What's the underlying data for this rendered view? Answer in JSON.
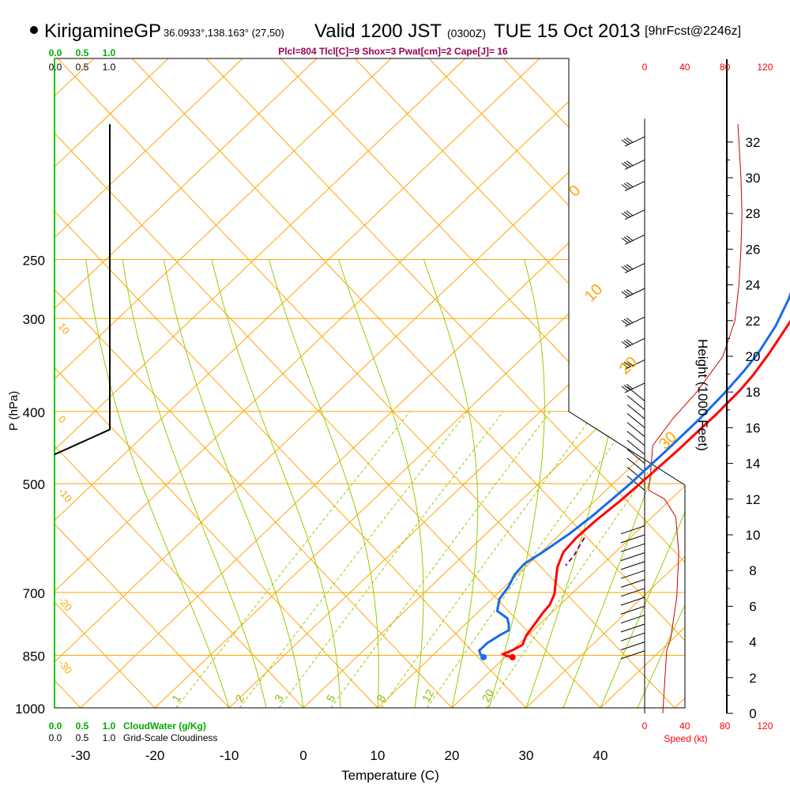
{
  "header": {
    "station": "KirigamineGP",
    "coords": "36.0933°,138.163° (27,50)",
    "valid": "Valid 1200 JST",
    "valid_z": "(0300Z)",
    "date": "TUE 15 Oct 2013",
    "forecast": "[9hrFcst@2246z]",
    "params": "Plcl=804 Tlcl[C]=9 Shox=3 Pwat[cm]=2 Cape[J]= 16"
  },
  "chart_data": {
    "type": "line",
    "xlabel": "Temperature (C)",
    "ylabel": "P (hPa)",
    "right_label": "Height (1000 Feet)",
    "speed_label": "Speed (kt)",
    "cloudwater_label": "CloudWater (g/Kg)",
    "cloudiness_label": "Grid-Scale Cloudiness",
    "x_ticks": [
      "-30",
      "-20",
      "-10",
      "0",
      "10",
      "20",
      "30",
      "40"
    ],
    "pressure_ticks": [
      "250",
      "300",
      "400",
      "500",
      "700",
      "850",
      "1000"
    ],
    "height_ticks": [
      "0",
      "2",
      "4",
      "6",
      "8",
      "10",
      "12",
      "14",
      "16",
      "18",
      "20",
      "22",
      "24",
      "26",
      "28",
      "30",
      "32"
    ],
    "speed_ticks": [
      "0",
      "40",
      "80",
      "120"
    ],
    "top_scale_green": [
      "0.0",
      "0.5",
      "1.0"
    ],
    "top_scale_black": [
      "0.0",
      "0.5",
      "1.0"
    ],
    "isotherm_labels": [
      "10",
      "0",
      "-10",
      "-20",
      "-30"
    ],
    "dry_adiabat_labels": [
      "0",
      "10",
      "20",
      "30"
    ],
    "mixing_ratio_labels": [
      "1",
      "2",
      "3",
      "5",
      "8",
      "12",
      "20"
    ],
    "temperature": {
      "name": "Temperature",
      "color": "#ff0000",
      "x": [
        21.0,
        19.9,
        19.3,
        20.1,
        20.6,
        19.8,
        19.3,
        18.8,
        18.6,
        17.7,
        15.9,
        14.3,
        13.0,
        12.7,
        12.9,
        13.4,
        13.7,
        14.0,
        14.1,
        13.9,
        13.5,
        12.6,
        11.4,
        10.2,
        8.6
      ],
      "y": [
        855,
        851,
        847,
        835,
        823,
        800,
        771,
        745,
        727,
        703,
        673,
        647,
        618,
        591,
        560,
        527,
        494,
        450,
        404,
        374,
        357,
        334,
        311,
        290,
        270
      ]
    },
    "dewpoint": {
      "name": "Dewpoint",
      "color": "#1a6aee",
      "x": [
        17.1,
        16.4,
        15.6,
        15.6,
        16.2,
        16.7,
        15.9,
        14.8,
        12.4,
        11.0,
        10.5,
        9.6,
        9.4,
        10.2,
        11.2,
        11.8,
        12.3,
        12.5,
        12.5,
        12.2,
        11.7,
        11.1,
        9.6,
        7.5,
        5.2
      ],
      "y": [
        855,
        849,
        838,
        818,
        799,
        787,
        773,
        758,
        741,
        714,
        688,
        662,
        640,
        618,
        584,
        552,
        503,
        453,
        410,
        378,
        353,
        334,
        307,
        282,
        262
      ]
    },
    "parcel": {
      "name": "Parcel",
      "color": "#800080",
      "x": [
        13.8,
        14.3,
        14.9,
        15.2
      ],
      "y": [
        591,
        607,
        624,
        644
      ]
    },
    "speed_profile": {
      "name": "Wind speed",
      "color": "#cc0000",
      "x": [
        18,
        22,
        26,
        32,
        34,
        31,
        20,
        4,
        6,
        8,
        28,
        52,
        78,
        90,
        94,
        96,
        97,
        96,
        94,
        93
      ],
      "y": [
        0,
        3.5,
        4.2,
        6.5,
        9,
        11,
        12,
        12.5,
        13.5,
        15,
        16.5,
        18,
        20,
        22,
        24,
        26,
        28,
        30,
        32,
        33
      ]
    },
    "cloudiness": {
      "name": "Grid-Scale Cloudiness",
      "x": [
        0.0,
        1.0,
        1.0,
        1.0
      ],
      "y": [
        14.5,
        15.9,
        16.4,
        33
      ]
    },
    "colors": {
      "isotherm": "#ffa500",
      "moist_adiabat": "#99cc00",
      "mixing_ratio": "#99cc00",
      "cloudwater": "#00a000",
      "params": "#990050",
      "speed": "#ff0000"
    }
  }
}
